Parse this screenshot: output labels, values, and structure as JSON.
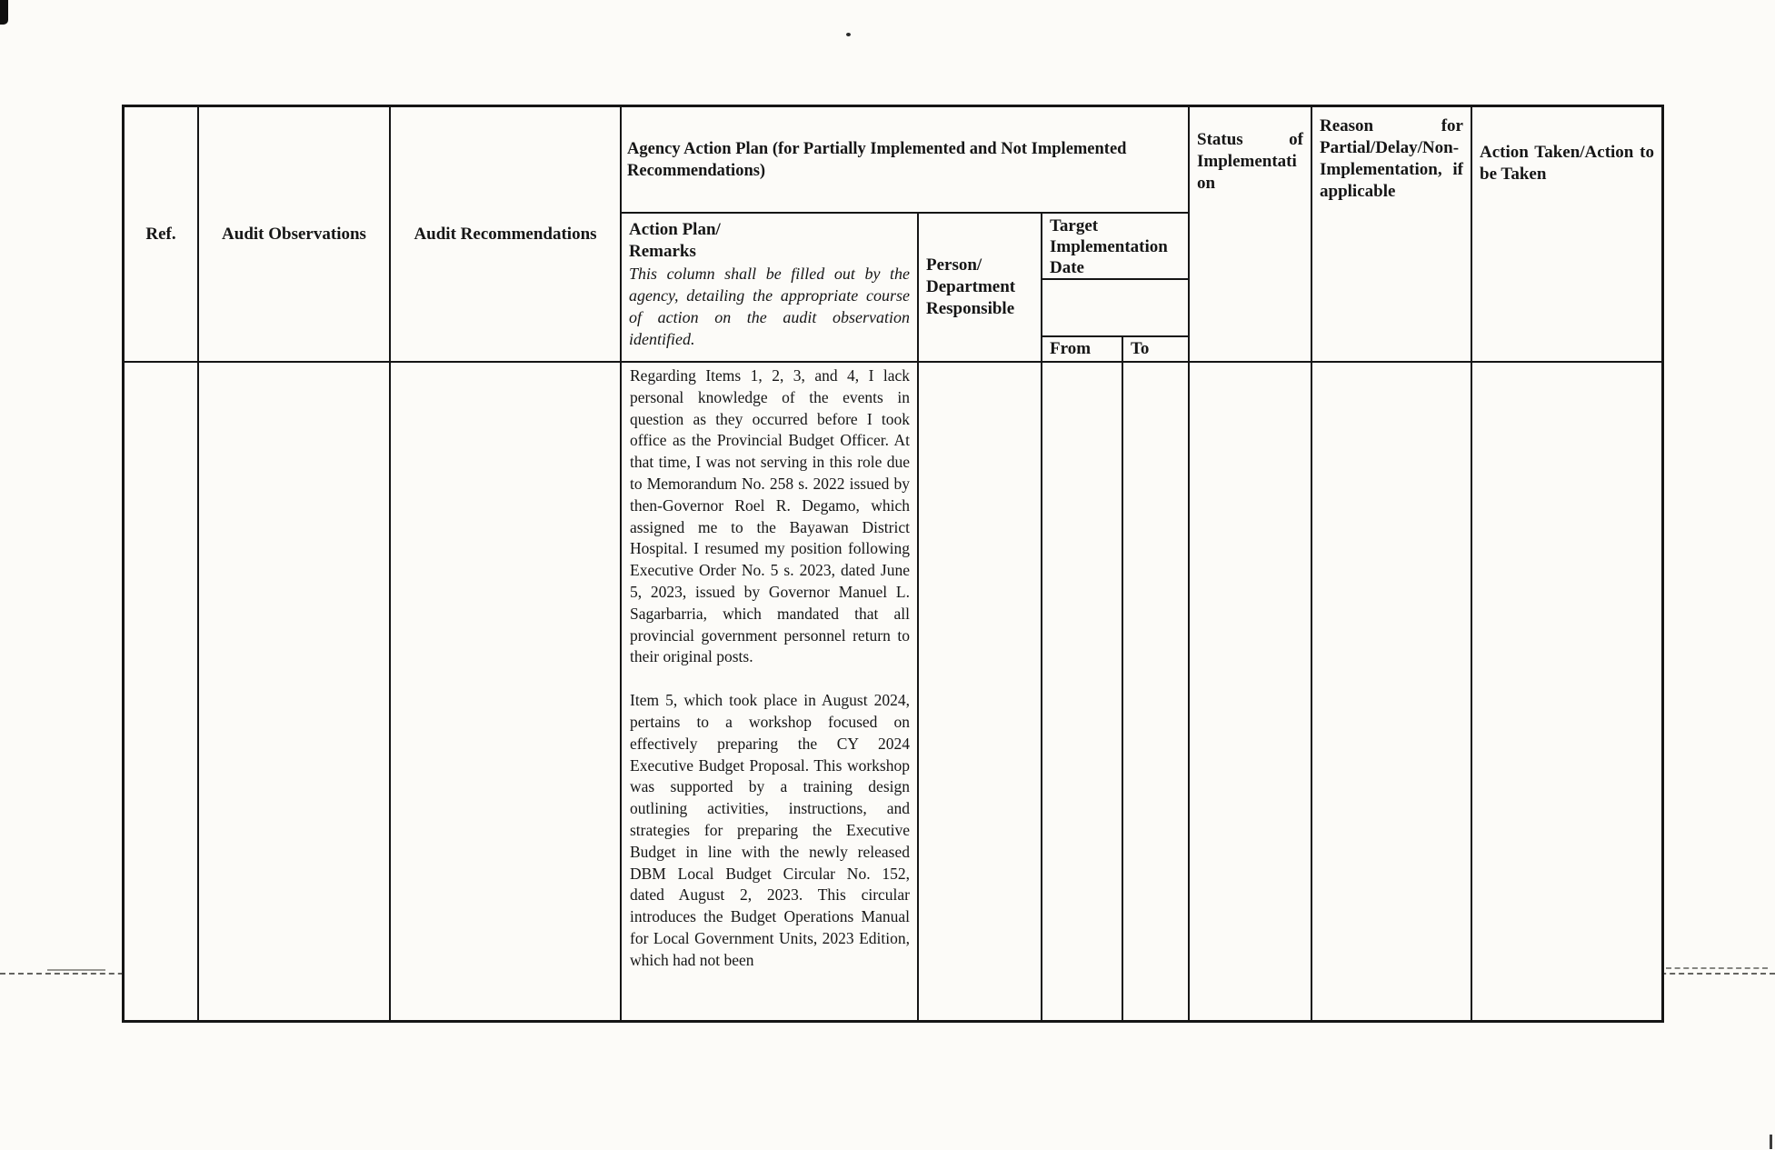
{
  "document": {
    "type": "scanned-audit-action-plan-matrix",
    "table": {
      "headers": {
        "ref": "Ref.",
        "audit_observations": "Audit Observations",
        "audit_recommendations": "Audit Recommendations",
        "agency_action_plan": "Agency Action Plan (for Partially Implemented and Not Implemented Recommendations)",
        "action_plan_label": "Action Plan/",
        "remarks_label": "Remarks",
        "action_plan_note": "This column shall be filled out by the agency, detailing the appropriate course of action on the audit observation identified.",
        "person_department": "Person/ Department Responsible",
        "target_implementation_date": "Target Implementation Date",
        "from": "From",
        "to": "To",
        "status_of_implementation": "Status of Implementation",
        "reason": "Reason for Partial/Delay/Non-Implementation, if applicable",
        "action_taken": "Action Taken/Action to be Taken"
      },
      "row": {
        "ref": "",
        "audit_observations": "",
        "audit_recommendations": "",
        "action_plan_p1": "Regarding Items 1, 2, 3, and 4, I lack personal knowledge of the events in question as they occurred before I took office as the Provincial Budget Officer. At that time, I was not serving in this role due to Memorandum No. 258 s. 2022 issued by then-Governor Roel R. Degamo, which assigned me to the Bayawan District Hospital. I resumed my position following Executive Order No. 5 s. 2023, dated June 5, 2023, issued by Governor Manuel L. Sagarbarria, which mandated that all provincial government personnel return to their original posts.",
        "action_plan_p2": "Item 5, which took place in August 2024, pertains to a workshop focused on effectively preparing the CY 2024 Executive Budget Proposal. This workshop was supported by a training design outlining activities, instructions, and strategies for preparing the Executive Budget in line with the newly released DBM Local Budget Circular No. 152, dated August 2, 2023. This circular introduces the Budget Operations Manual for Local Government Units, 2023 Edition, which had not been",
        "person_department": "",
        "target_from": "",
        "target_to": "",
        "status_of_implementation": "",
        "reason": "",
        "action_taken": ""
      }
    },
    "colors": {
      "paper": "#fcfbf8",
      "ink": "#161616",
      "border": "#151515"
    }
  }
}
